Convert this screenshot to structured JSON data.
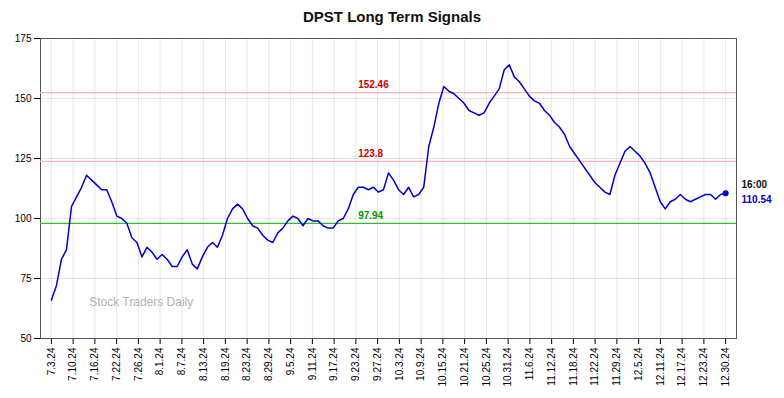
{
  "chart_data": {
    "type": "line",
    "title": "DPST Long Term Signals",
    "color": "#0000cc",
    "values": [
      66,
      72,
      83,
      87,
      105,
      109,
      113,
      118,
      116,
      114,
      112,
      112,
      107,
      101,
      100,
      98,
      92,
      90,
      84,
      88,
      86,
      83,
      85,
      83,
      80,
      80,
      84,
      87,
      81,
      79,
      84,
      88,
      90,
      88,
      93,
      100,
      104,
      106,
      104,
      100,
      97,
      96,
      93,
      91,
      90,
      94,
      96,
      99,
      101,
      100,
      97,
      100,
      99,
      99,
      97,
      96,
      96,
      99,
      100,
      104,
      110,
      113,
      113,
      112,
      113,
      111,
      112,
      119,
      116,
      112,
      110,
      113,
      109,
      110,
      113,
      130,
      138,
      148,
      155,
      153,
      152,
      150,
      148,
      145,
      144,
      143,
      144,
      148,
      151,
      154,
      162,
      164,
      159,
      157,
      154,
      151,
      149,
      148,
      145,
      143,
      140,
      138,
      135,
      130,
      127,
      124,
      121,
      118,
      115,
      113,
      111,
      110,
      118,
      123,
      128,
      130,
      128,
      126,
      123,
      119,
      113,
      107,
      104,
      107,
      108,
      110,
      108,
      107,
      108,
      109,
      110,
      110,
      108,
      110,
      110.54
    ],
    "xlim": [
      -0.5,
      31.5
    ],
    "xticks": [
      {
        "value": 0,
        "label": "7.3.24"
      },
      {
        "value": 1,
        "label": "7.10.24"
      },
      {
        "value": 2,
        "label": "7.16.24"
      },
      {
        "value": 3,
        "label": "7.22.24"
      },
      {
        "value": 4,
        "label": "7.26.24"
      },
      {
        "value": 5,
        "label": "8.1.24"
      },
      {
        "value": 6,
        "label": "8.7.24"
      },
      {
        "value": 7,
        "label": "8.13.24"
      },
      {
        "value": 8,
        "label": "8.19.24"
      },
      {
        "value": 9,
        "label": "8.23.24"
      },
      {
        "value": 10,
        "label": "8.29.24"
      },
      {
        "value": 11,
        "label": "9.5.24"
      },
      {
        "value": 12,
        "label": "9.11.24"
      },
      {
        "value": 13,
        "label": "9.17.24"
      },
      {
        "value": 14,
        "label": "9.23.24"
      },
      {
        "value": 15,
        "label": "9.27.24"
      },
      {
        "value": 16,
        "label": "10.3.24"
      },
      {
        "value": 17,
        "label": "10.9.24"
      },
      {
        "value": 18,
        "label": "10.15.24"
      },
      {
        "value": 19,
        "label": "10.21.24"
      },
      {
        "value": 20,
        "label": "10.25.24"
      },
      {
        "value": 21,
        "label": "10.31.24"
      },
      {
        "value": 22,
        "label": "11.6.24"
      },
      {
        "value": 23,
        "label": "11.12.24"
      },
      {
        "value": 24,
        "label": "11.18.24"
      },
      {
        "value": 25,
        "label": "11.22.24"
      },
      {
        "value": 26,
        "label": "11.29.24"
      },
      {
        "value": 27,
        "label": "12.5.24"
      },
      {
        "value": 28,
        "label": "12.11.24"
      },
      {
        "value": 29,
        "label": "12.17.24"
      },
      {
        "value": 30,
        "label": "12.23.24"
      },
      {
        "value": 31,
        "label": "12.30.24"
      }
    ],
    "ylim": [
      50,
      175
    ],
    "yticks": [
      50,
      75,
      100,
      125,
      150,
      175
    ],
    "grid": true,
    "hlines": [
      {
        "y": 152.46,
        "label": "152.46",
        "color": "#ffb3b3",
        "label_color": "#cc0000"
      },
      {
        "y": 123.8,
        "label": "123.8",
        "color": "#ffb3b3",
        "label_color": "#cc0000"
      },
      {
        "y": 97.94,
        "label": "97.94",
        "color": "#33bb33",
        "label_color": "#009900"
      }
    ],
    "annotations": [
      {
        "text": "Stock Traders Daily",
        "color": "#b0b0b0"
      }
    ],
    "end_labels": [
      {
        "text": "16:00",
        "color": "#111111"
      },
      {
        "text": "110.54",
        "color": "#0000cc"
      }
    ]
  }
}
